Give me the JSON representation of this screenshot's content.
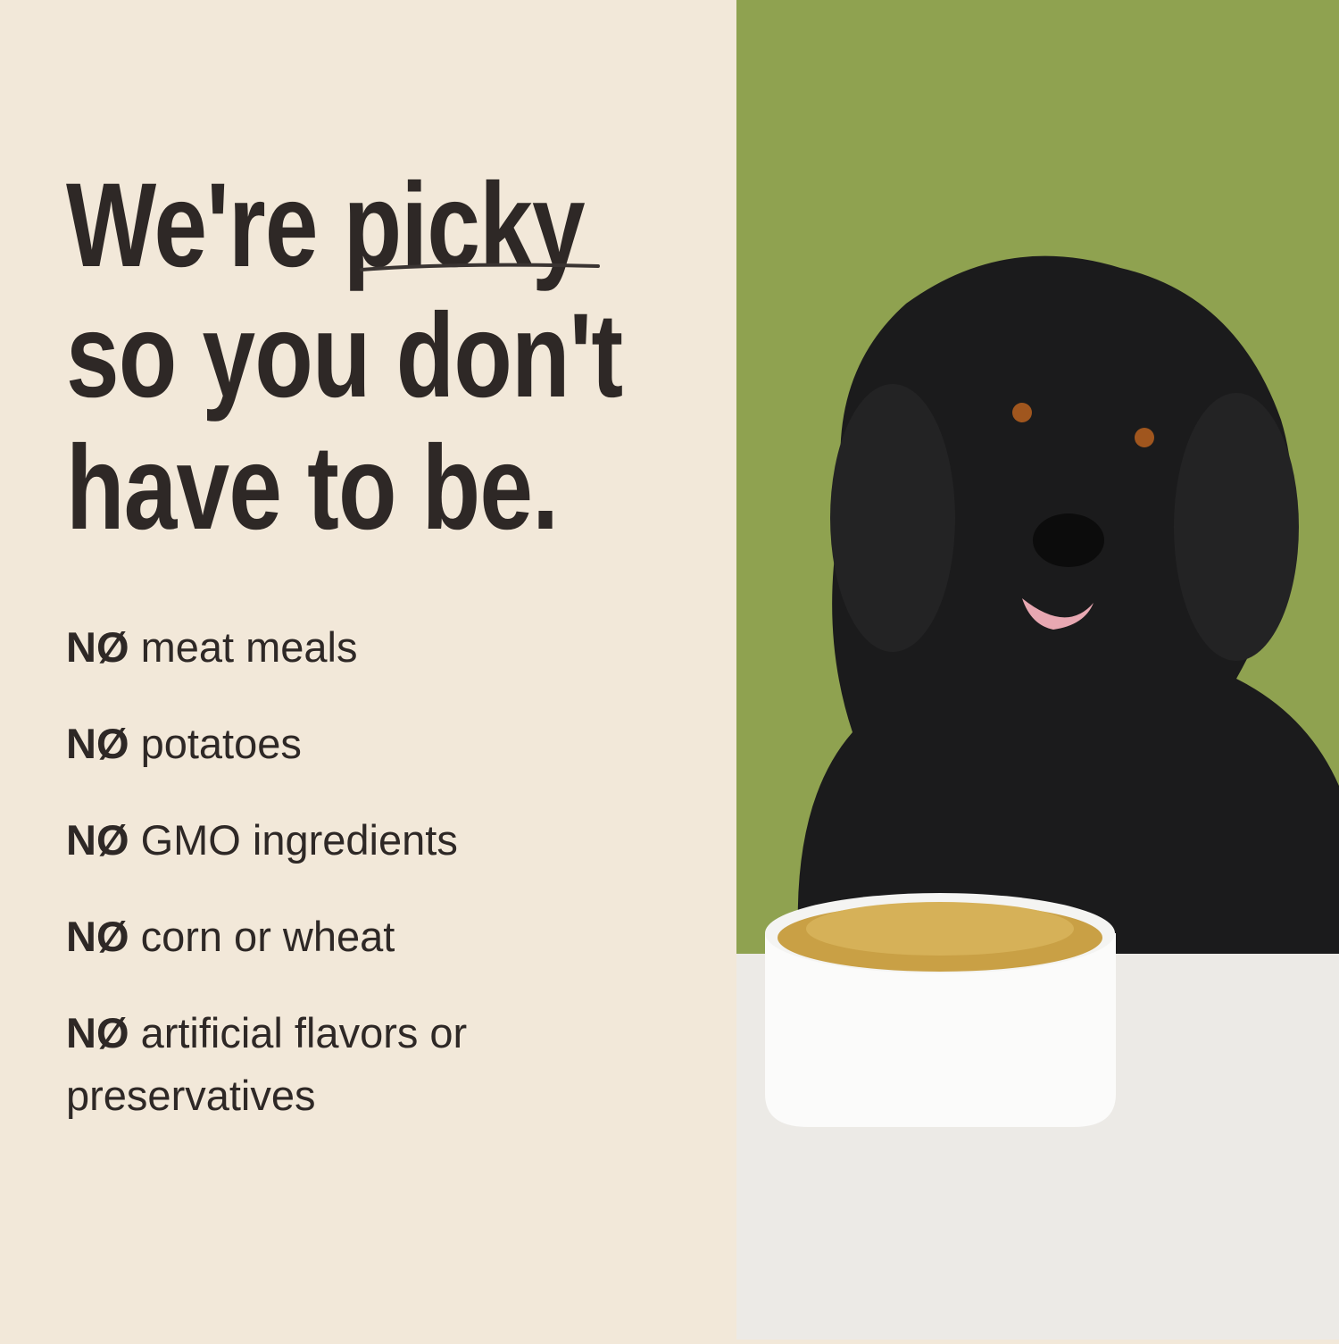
{
  "headline": {
    "line1_prefix": "We're ",
    "line1_emphasis": "picky",
    "line2": "so you don't",
    "line3": "have to be."
  },
  "claims": [
    {
      "prefix": "NØ",
      "text": "meat meals"
    },
    {
      "prefix": "NØ",
      "text": "potatoes"
    },
    {
      "prefix": "NØ",
      "text": "GMO ingredients"
    },
    {
      "prefix": "NØ",
      "text": "corn or wheat"
    },
    {
      "prefix": "NØ",
      "text": "artificial flavors or preservatives"
    }
  ],
  "colors": {
    "background": "#f2e8d9",
    "text": "#2e2826",
    "photo_backdrop": "#8fa250",
    "table": "#eceae6"
  }
}
